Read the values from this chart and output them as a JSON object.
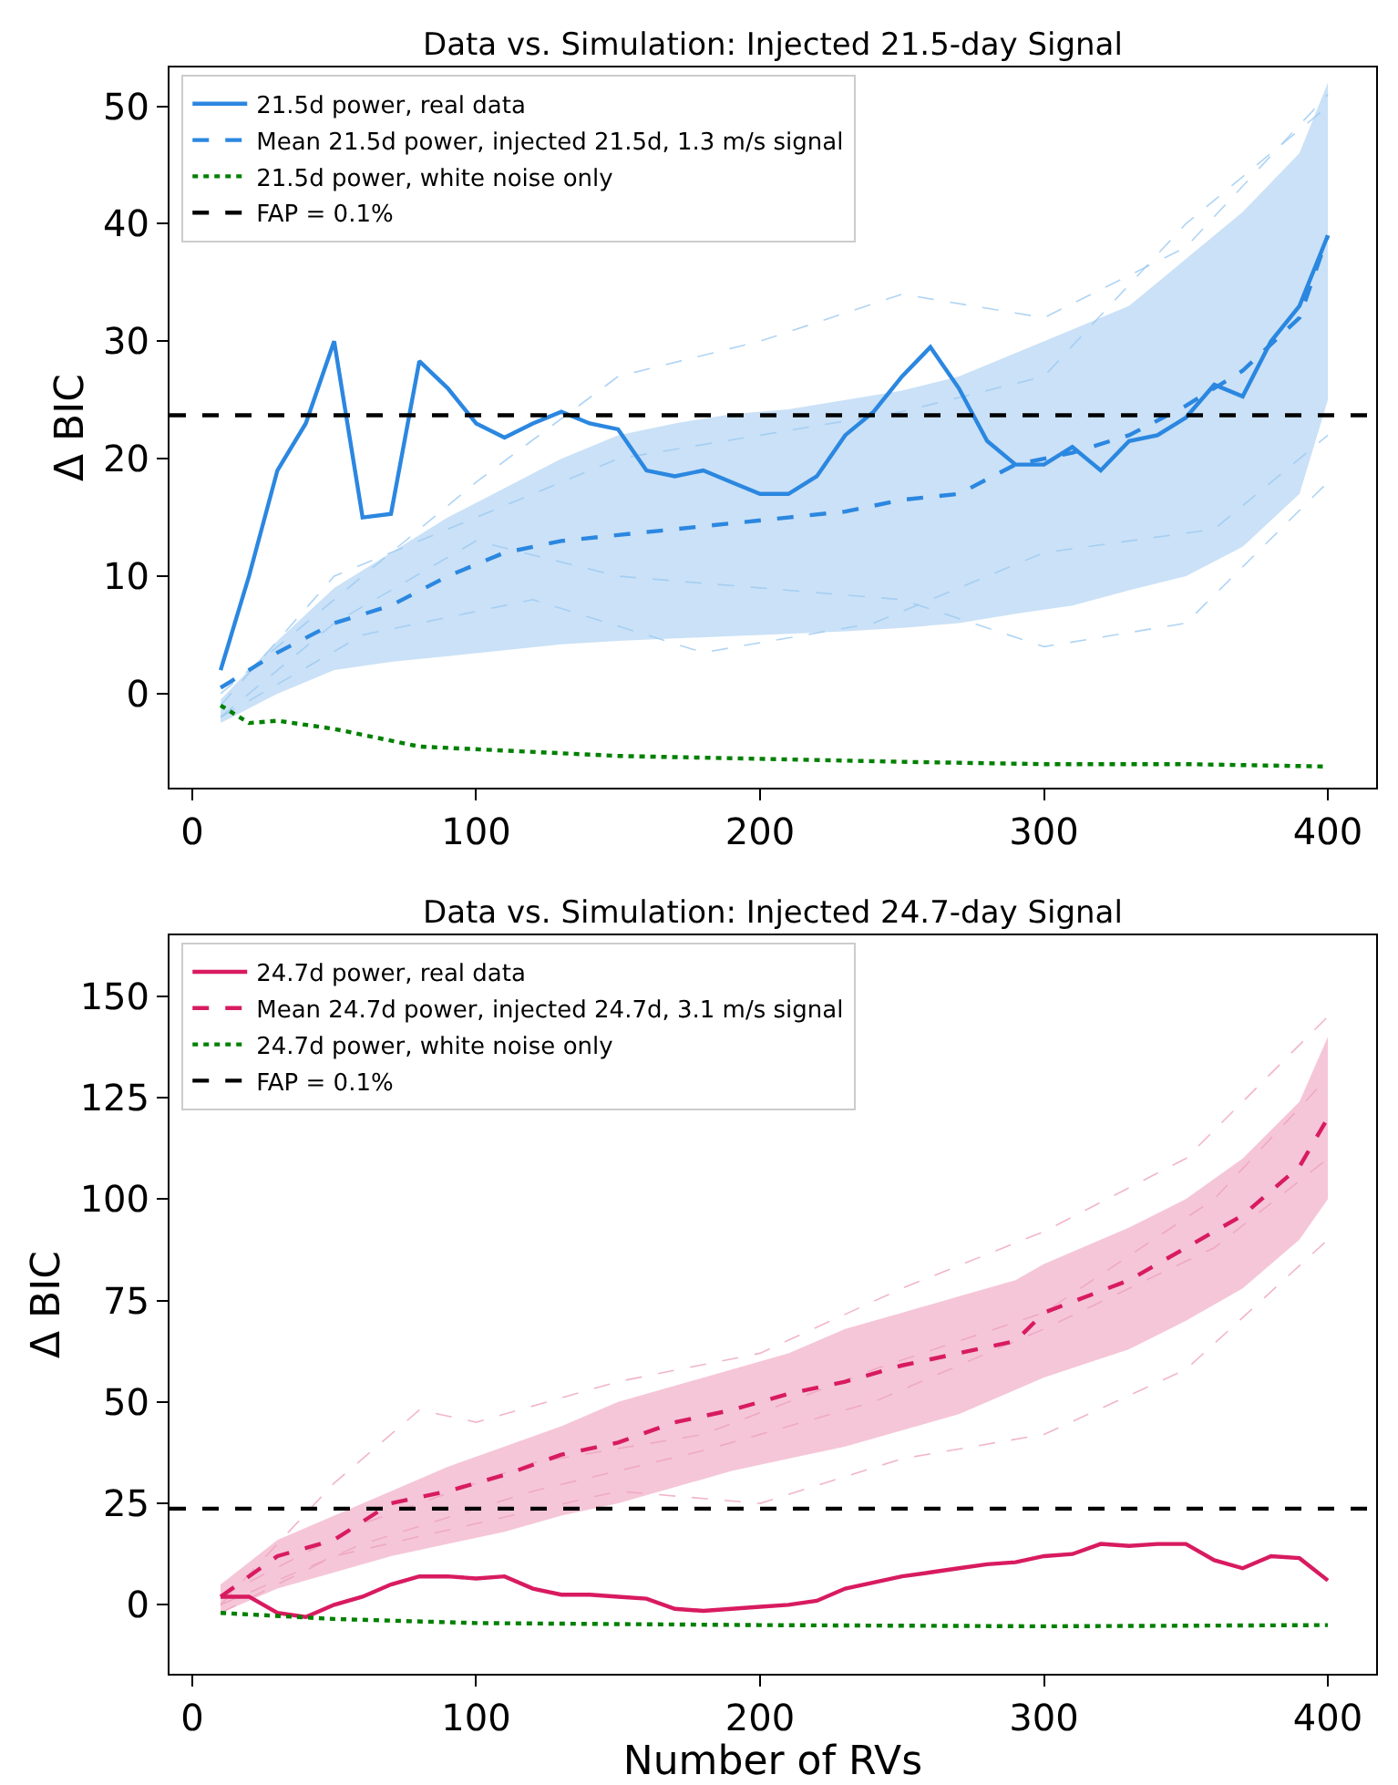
{
  "chart_data": [
    {
      "type": "line",
      "title": "Data vs. Simulation: Injected 21.5-day Signal",
      "ylabel": "Δ BIC",
      "xlim": [
        -8,
        417
      ],
      "xticks": [
        0,
        100,
        200,
        300,
        400
      ],
      "ylim": [
        -8,
        53.3
      ],
      "yticks": [
        0,
        10,
        20,
        30,
        40,
        50
      ],
      "grid": false,
      "legend": "top left",
      "series": [
        {
          "name": "21.5d power, real data",
          "color": "#2b87e0",
          "line_style": "solid",
          "x": [
            10,
            20,
            30,
            40,
            50,
            60,
            70,
            80,
            90,
            100,
            110,
            120,
            130,
            140,
            150,
            160,
            170,
            180,
            190,
            200,
            210,
            220,
            230,
            240,
            250,
            260,
            270,
            280,
            290,
            300,
            310,
            320,
            330,
            340,
            350,
            360,
            370,
            380,
            390,
            400
          ],
          "values": [
            2,
            10,
            19,
            23,
            30,
            15,
            15.3,
            28.3,
            26,
            23,
            21.8,
            23,
            24,
            23,
            22.5,
            19,
            18.5,
            19,
            18,
            17,
            17,
            18.5,
            22,
            24,
            27,
            29.5,
            26,
            21.5,
            19.5,
            19.5,
            21,
            19,
            21.5,
            22,
            23.5,
            26.3,
            25.3,
            30,
            33,
            39
          ]
        },
        {
          "name": "Mean 21.5d power, injected 21.5d, 1.3 m/s signal",
          "color": "#2b87e0",
          "line_style": "dashed",
          "x": [
            10,
            30,
            50,
            70,
            90,
            110,
            130,
            150,
            170,
            190,
            210,
            230,
            250,
            270,
            290,
            310,
            330,
            350,
            370,
            390,
            400
          ],
          "values": [
            0.5,
            3.5,
            6,
            7.5,
            10,
            12,
            13,
            13.5,
            14,
            14.5,
            15,
            15.5,
            16.5,
            17,
            19.5,
            20.5,
            22,
            24.5,
            27.5,
            32,
            39
          ],
          "lower": [
            -2.5,
            0,
            2,
            2.7,
            3.2,
            3.7,
            4.2,
            4.5,
            4.7,
            4.9,
            5.1,
            5.3,
            5.6,
            6,
            6.8,
            7.5,
            8.8,
            10,
            12.5,
            17,
            25
          ],
          "upper": [
            -0.5,
            4.5,
            9,
            12,
            15,
            17.5,
            20,
            22,
            23,
            23.8,
            24.2,
            25,
            25.8,
            27,
            29,
            31,
            33,
            37,
            41,
            46,
            52
          ]
        },
        {
          "name": "21.5d power, white noise only",
          "color": "#008000",
          "line_style": "dotted",
          "x": [
            10,
            20,
            30,
            50,
            80,
            150,
            250,
            300,
            350,
            400
          ],
          "values": [
            -1,
            -2.5,
            -2.3,
            -3,
            -4.5,
            -5.3,
            -5.8,
            -6,
            -6,
            -6.2
          ]
        },
        {
          "name": "FAP = 0.1%",
          "color": "#000000",
          "line_style": "dashed",
          "x": [
            -8,
            417
          ],
          "values": [
            23.7,
            23.7
          ]
        },
        {
          "color": "#9ccaf2",
          "line_style": "dashed",
          "x": [
            10,
            50,
            100,
            150,
            200,
            250,
            300,
            350,
            400
          ],
          "values": [
            0,
            8,
            18,
            27,
            30,
            34,
            32,
            38,
            51
          ]
        },
        {
          "color": "#9ccaf2",
          "line_style": "dashed",
          "x": [
            10,
            50,
            100,
            150,
            200,
            250,
            300,
            350,
            400
          ],
          "values": [
            -2,
            6,
            13,
            10,
            9,
            8,
            4,
            6,
            18
          ]
        },
        {
          "color": "#9ccaf2",
          "line_style": "dashed",
          "x": [
            10,
            50,
            80,
            150,
            200,
            250,
            300,
            350,
            400
          ],
          "values": [
            -1,
            10,
            13,
            20,
            22,
            24,
            27,
            40,
            50
          ]
        },
        {
          "color": "#9ccaf2",
          "line_style": "dashed",
          "x": [
            10,
            60,
            120,
            180,
            240,
            300,
            360,
            400
          ],
          "values": [
            -2,
            5,
            8,
            3.5,
            6,
            12,
            14,
            22
          ]
        }
      ]
    },
    {
      "type": "line",
      "title": "Data vs. Simulation: Injected 24.7-day Signal",
      "xlabel": "Number of RVs",
      "ylabel": "Δ BIC",
      "xlim": [
        -8,
        417
      ],
      "xticks": [
        0,
        100,
        200,
        300,
        400
      ],
      "ylim": [
        -17,
        165
      ],
      "yticks": [
        0,
        25,
        50,
        75,
        100,
        125,
        150
      ],
      "grid": false,
      "legend": "top left",
      "series": [
        {
          "name": "24.7d power, real data",
          "color": "#d81b60",
          "line_style": "solid",
          "x": [
            10,
            20,
            30,
            40,
            50,
            60,
            70,
            80,
            90,
            100,
            110,
            120,
            130,
            140,
            150,
            160,
            170,
            180,
            190,
            200,
            210,
            220,
            230,
            240,
            250,
            260,
            270,
            280,
            290,
            300,
            310,
            320,
            330,
            340,
            350,
            360,
            370,
            380,
            390,
            400
          ],
          "values": [
            2,
            2,
            -2,
            -3,
            0,
            2,
            5,
            7,
            7,
            6.5,
            7,
            4,
            2.5,
            2.5,
            2,
            1.5,
            -1,
            -1.5,
            -1,
            -0.5,
            0,
            1,
            4,
            5.5,
            7,
            8,
            9,
            10,
            10.5,
            12,
            12.5,
            15,
            14.5,
            15,
            15,
            11,
            9,
            12,
            11.5,
            6
          ]
        },
        {
          "name": "Mean 24.7d power, injected 24.7d, 3.1 m/s signal",
          "color": "#d81b60",
          "line_style": "dashed",
          "x": [
            10,
            30,
            50,
            70,
            90,
            110,
            130,
            150,
            170,
            190,
            210,
            230,
            250,
            270,
            290,
            300,
            330,
            350,
            370,
            390,
            400
          ],
          "values": [
            2,
            12,
            16,
            25,
            28,
            32,
            37,
            40,
            45,
            48,
            52,
            55,
            59,
            62,
            65,
            72,
            80,
            88,
            96,
            108,
            120
          ],
          "lower": [
            -2,
            4,
            8,
            12,
            15,
            18,
            22,
            25,
            29,
            33,
            36,
            39,
            43,
            47,
            53,
            56,
            63,
            70,
            78,
            90,
            100
          ],
          "upper": [
            5,
            16,
            22,
            28,
            34,
            39,
            44,
            50,
            54,
            58,
            62,
            68,
            72,
            76,
            80,
            84,
            93,
            100,
            110,
            124,
            140
          ]
        },
        {
          "name": "24.7d power, white noise only",
          "color": "#008000",
          "line_style": "dotted",
          "x": [
            10,
            50,
            100,
            200,
            300,
            400
          ],
          "values": [
            -2,
            -3.5,
            -4.5,
            -5,
            -5.3,
            -5
          ]
        },
        {
          "name": "FAP = 0.1%",
          "color": "#000000",
          "line_style": "dashed",
          "x": [
            -8,
            417
          ],
          "values": [
            23.7,
            23.7
          ]
        },
        {
          "color": "#eea3be",
          "line_style": "dashed",
          "x": [
            10,
            50,
            80,
            100,
            150,
            200,
            250,
            300,
            350,
            400
          ],
          "values": [
            0,
            30,
            48,
            45,
            55,
            62,
            78,
            92,
            110,
            145
          ]
        },
        {
          "color": "#eea3be",
          "line_style": "dashed",
          "x": [
            10,
            50,
            100,
            150,
            200,
            250,
            300,
            350,
            400
          ],
          "values": [
            -2,
            12,
            20,
            28,
            25,
            36,
            42,
            58,
            90
          ]
        },
        {
          "color": "#eea3be",
          "line_style": "dashed",
          "x": [
            10,
            60,
            120,
            180,
            240,
            300,
            360,
            400
          ],
          "values": [
            2,
            20,
            35,
            42,
            58,
            72,
            100,
            130
          ]
        },
        {
          "color": "#eea3be",
          "line_style": "dashed",
          "x": [
            10,
            60,
            120,
            180,
            240,
            300,
            360,
            400
          ],
          "values": [
            0,
            15,
            28,
            38,
            50,
            68,
            88,
            110
          ]
        }
      ]
    }
  ]
}
